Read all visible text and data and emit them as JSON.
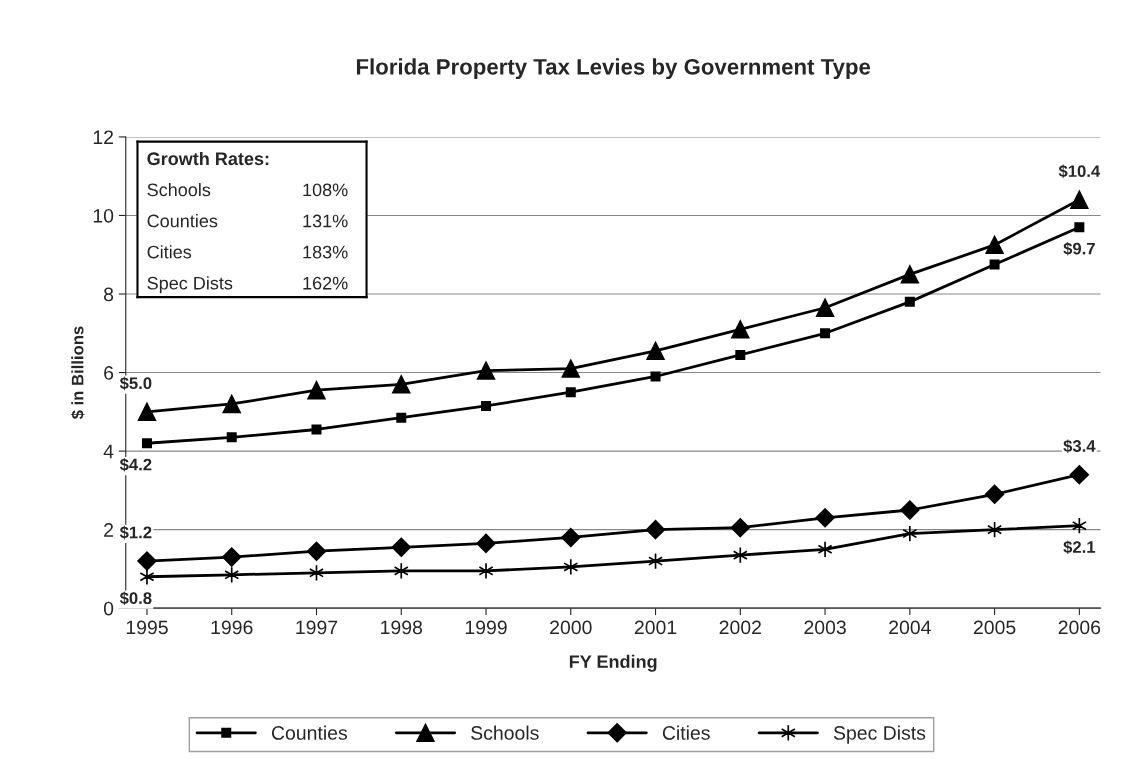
{
  "chart_data": {
    "type": "line",
    "title": "Florida Property Tax Levies by Government Type",
    "xlabel": "FY Ending",
    "ylabel": "$ in Billions",
    "categories": [
      "1995",
      "1996",
      "1997",
      "1998",
      "1999",
      "2000",
      "2001",
      "2002",
      "2003",
      "2004",
      "2005",
      "2006"
    ],
    "series": [
      {
        "name": "Counties",
        "color": "#000000",
        "marker": "square",
        "values": [
          4.2,
          4.35,
          4.55,
          4.85,
          5.15,
          5.5,
          5.9,
          6.45,
          7.0,
          7.8,
          8.75,
          9.7
        ],
        "value_labels": [
          "$4.2",
          null,
          null,
          null,
          null,
          null,
          null,
          null,
          null,
          null,
          null,
          "$9.7"
        ]
      },
      {
        "name": "Schools",
        "color": "#000000",
        "marker": "triangle",
        "values": [
          5.0,
          5.2,
          5.55,
          5.7,
          6.05,
          6.1,
          6.55,
          7.1,
          7.65,
          8.5,
          9.25,
          10.4
        ],
        "value_labels": [
          "$5.0",
          null,
          null,
          null,
          null,
          null,
          null,
          null,
          null,
          null,
          null,
          "$10.4"
        ]
      },
      {
        "name": "Cities",
        "color": "#000000",
        "marker": "diamond",
        "values": [
          1.2,
          1.3,
          1.45,
          1.55,
          1.65,
          1.8,
          2.0,
          2.05,
          2.3,
          2.5,
          2.9,
          3.4
        ],
        "value_labels": [
          "$1.2",
          null,
          null,
          null,
          null,
          null,
          null,
          null,
          null,
          null,
          null,
          "$3.4"
        ]
      },
      {
        "name": "Spec Dists",
        "color": "#000000",
        "marker": "cross",
        "values": [
          0.8,
          0.85,
          0.9,
          0.95,
          0.95,
          1.05,
          1.2,
          1.35,
          1.5,
          1.9,
          2.0,
          2.1
        ],
        "value_labels": [
          "$0.8",
          null,
          null,
          null,
          null,
          null,
          null,
          null,
          null,
          null,
          null,
          "$2.1"
        ]
      }
    ],
    "ylim": [
      0,
      12
    ],
    "yticks": [
      0,
      2,
      4,
      6,
      8,
      10,
      12
    ],
    "grid": "y",
    "legend": "bottom",
    "line_style": "solid",
    "annotations": [
      "Growth Rates:",
      "Schools 108%",
      "Counties 131%",
      "Cities 183%",
      "Spec Dists 162%"
    ]
  }
}
